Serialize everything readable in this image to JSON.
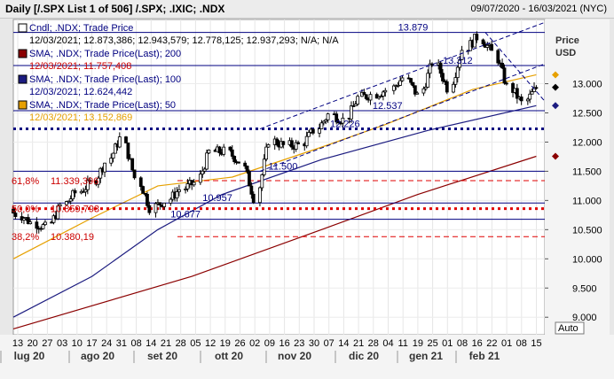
{
  "header": {
    "title": "Daily [/.SPX List 1 of 506] /.SPX; .IXIC; .NDX",
    "date_range": "09/07/2020 - 16/03/2021 (NYC)"
  },
  "legend": [
    {
      "label": "Cndl; .NDX; Trade Price",
      "values": "12/03/2021; 12.873,386; 12.943,579; 12.778,125; 12.937,293; N/A; N/A",
      "color": "#000080",
      "value_color": "#000000",
      "box": "#ffffff"
    },
    {
      "label": "SMA; .NDX; Trade Price(Last); 200",
      "values": "12/03/2021; 11.757,408",
      "color": "#000080",
      "value_color": "#cc0000",
      "box": "#8b0000"
    },
    {
      "label": "SMA; .NDX; Trade Price(Last); 100",
      "values": "12/03/2021; 12.624,442",
      "color": "#000080",
      "value_color": "#000080",
      "box": "#1c1c80"
    },
    {
      "label": "SMA; .NDX; Trade Price(Last); 50",
      "values": "12/03/2021; 13.152,869",
      "color": "#000080",
      "value_color": "#e6a000",
      "box": "#e6a000"
    }
  ],
  "y_axis": {
    "title": "Price",
    "unit": "USD",
    "ticks": [
      "13.000",
      "12.500",
      "12.000",
      "11.500",
      "11.000",
      "10.500",
      "10.000",
      "9.500",
      "9.000"
    ]
  },
  "x_axis": {
    "days": [
      "13",
      "20",
      "27",
      "03",
      "10",
      "17",
      "24",
      "31",
      "08",
      "14",
      "21",
      "28",
      "05",
      "12",
      "19",
      "26",
      "02",
      "09",
      "16",
      "23",
      "30",
      "07",
      "14",
      "21",
      "28",
      "04",
      "11",
      "19",
      "25",
      "01",
      "08",
      "16",
      "22",
      "01",
      "08",
      "15"
    ],
    "months": [
      "lug 20",
      "ago 20",
      "set 20",
      "ott 20",
      "nov 20",
      "dic 20",
      "gen 21",
      "feb 21"
    ]
  },
  "auto_button": "Auto",
  "chart_data": {
    "type": "candlestick",
    "instrument": ".NDX",
    "ylim": [
      8700,
      14100
    ],
    "x_range": [
      "2020-07-09",
      "2021-03-16"
    ],
    "horizontal_levels": [
      {
        "label": "13.879",
        "value": 13879
      },
      {
        "label": "13.312",
        "value": 13312
      },
      {
        "label": "12.537",
        "value": 12537
      },
      {
        "label": "12.226",
        "value": 12226,
        "style": "dotted",
        "color": "#000080"
      },
      {
        "label": "11.500",
        "value": 11500
      },
      {
        "label": "10.957",
        "value": 10957
      },
      {
        "label": "10.677",
        "value": 10677
      }
    ],
    "fibonacci": [
      {
        "label": "61,8%",
        "price_label": "11.339,396",
        "value": 11339.396
      },
      {
        "label": "50,0%",
        "price_label": "10.859,793",
        "value": 10859.793
      },
      {
        "label": "38,2%",
        "price_label": "10.380,19",
        "value": 10380.19
      }
    ],
    "right_markers": [
      {
        "value": 13152.869,
        "color": "#e6a000"
      },
      {
        "value": 12937.293,
        "color": "#000000"
      },
      {
        "value": 12624.442,
        "color": "#1c1c80"
      },
      {
        "value": 11757.408,
        "color": "#8b0000"
      }
    ],
    "closes_weekly": [
      {
        "date": "2020-07-10",
        "close": 10770
      },
      {
        "date": "2020-07-17",
        "close": 10620
      },
      {
        "date": "2020-07-24",
        "close": 10540
      },
      {
        "date": "2020-07-31",
        "close": 10910
      },
      {
        "date": "2020-08-07",
        "close": 11130
      },
      {
        "date": "2020-08-14",
        "close": 11290
      },
      {
        "date": "2020-08-21",
        "close": 11650
      },
      {
        "date": "2020-08-28",
        "close": 12060
      },
      {
        "date": "2020-09-04",
        "close": 11390
      },
      {
        "date": "2020-09-11",
        "close": 10880
      },
      {
        "date": "2020-09-18",
        "close": 10990
      },
      {
        "date": "2020-09-25",
        "close": 11190
      },
      {
        "date": "2020-10-02",
        "close": 11300
      },
      {
        "date": "2020-10-09",
        "close": 11830
      },
      {
        "date": "2020-10-16",
        "close": 11840
      },
      {
        "date": "2020-10-23",
        "close": 11670
      },
      {
        "date": "2020-10-30",
        "close": 11050
      },
      {
        "date": "2020-11-06",
        "close": 12030
      },
      {
        "date": "2020-11-13",
        "close": 11940
      },
      {
        "date": "2020-11-20",
        "close": 11950
      },
      {
        "date": "2020-11-27",
        "close": 12200
      },
      {
        "date": "2020-12-04",
        "close": 12470
      },
      {
        "date": "2020-12-11",
        "close": 12380
      },
      {
        "date": "2020-12-18",
        "close": 12760
      },
      {
        "date": "2020-12-24",
        "close": 12810
      },
      {
        "date": "2020-12-31",
        "close": 12890
      },
      {
        "date": "2021-01-08",
        "close": 13100
      },
      {
        "date": "2021-01-15",
        "close": 12800
      },
      {
        "date": "2021-01-22",
        "close": 13370
      },
      {
        "date": "2021-01-29",
        "close": 12930
      },
      {
        "date": "2021-02-05",
        "close": 13590
      },
      {
        "date": "2021-02-12",
        "close": 13800
      },
      {
        "date": "2021-02-19",
        "close": 13540
      },
      {
        "date": "2021-02-26",
        "close": 12950
      },
      {
        "date": "2021-03-05",
        "close": 12670
      },
      {
        "date": "2021-03-12",
        "close": 12937
      }
    ],
    "sma": [
      {
        "name": "SMA 200",
        "color": "#8b0000",
        "points": [
          [
            "2020-07-09",
            8800
          ],
          [
            "2020-10-01",
            9700
          ],
          [
            "2020-12-01",
            10500
          ],
          [
            "2021-01-15",
            11100
          ],
          [
            "2021-03-12",
            11757
          ]
        ]
      },
      {
        "name": "SMA 100",
        "color": "#1c1c80",
        "points": [
          [
            "2020-07-09",
            9000
          ],
          [
            "2020-08-15",
            9700
          ],
          [
            "2020-09-15",
            10500
          ],
          [
            "2020-10-15",
            11100
          ],
          [
            "2020-12-01",
            11700
          ],
          [
            "2021-01-20",
            12200
          ],
          [
            "2021-03-12",
            12624
          ]
        ]
      },
      {
        "name": "SMA 50",
        "color": "#e6a000",
        "points": [
          [
            "2020-07-09",
            10000
          ],
          [
            "2020-08-15",
            10700
          ],
          [
            "2020-09-15",
            11250
          ],
          [
            "2020-10-20",
            11400
          ],
          [
            "2020-11-30",
            11900
          ],
          [
            "2020-12-31",
            12300
          ],
          [
            "2021-02-10",
            12900
          ],
          [
            "2021-03-12",
            13153
          ]
        ]
      }
    ]
  }
}
